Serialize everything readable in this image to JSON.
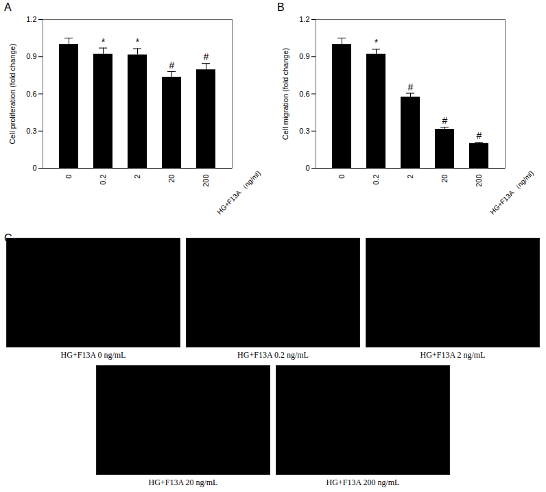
{
  "chart_data": [
    {
      "type": "bar",
      "title": "A",
      "categories": [
        "0",
        "0.2",
        "2",
        "20",
        "200"
      ],
      "values": [
        1.0,
        0.92,
        0.915,
        0.735,
        0.795
      ],
      "errors": [
        0.05,
        0.05,
        0.05,
        0.045,
        0.05
      ],
      "annotations": [
        null,
        "*",
        "*",
        "#",
        "#"
      ],
      "color": "#000000",
      "ylabel": "Cell proliferation (fold change)",
      "xlabel": "HG+F13A （ng/ml)",
      "ylim": [
        0,
        1.2
      ],
      "yticks": [
        0,
        0.3,
        0.6,
        0.9,
        1.2
      ],
      "grid": false
    },
    {
      "type": "bar",
      "title": "B",
      "categories": [
        "0",
        "0.2",
        "2",
        "20",
        "200"
      ],
      "values": [
        1.0,
        0.92,
        0.575,
        0.315,
        0.2
      ],
      "errors": [
        0.05,
        0.04,
        0.03,
        0.015,
        0.01
      ],
      "annotations": [
        null,
        "*",
        "#",
        "#",
        "#"
      ],
      "color": "#000000",
      "ylabel": "Cell migration (fold change)",
      "xlabel": "HG+F13A （ng/ml)",
      "ylim": [
        0,
        1.2
      ],
      "yticks": [
        0,
        0.3,
        0.6,
        0.9,
        1.2
      ],
      "grid": false
    }
  ],
  "panel_c": {
    "label": "C",
    "images": [
      "HG+F13A  0 ng/mL",
      "HG+F13A  0.2 ng/mL",
      "HG+F13A  2 ng/mL",
      "HG+F13A  20 ng/mL",
      "HG+F13A  200 ng/mL"
    ]
  }
}
